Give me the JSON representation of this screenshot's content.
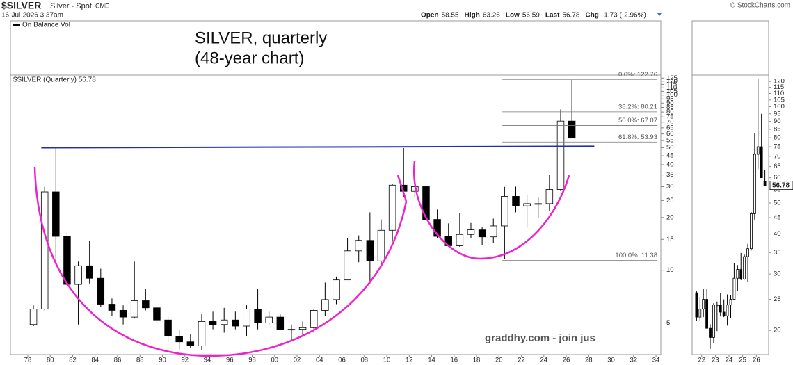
{
  "header": {
    "symbol": "$SILVER",
    "name": "Silver - Spot",
    "exchange": "CME",
    "date": "16-Jul-2026 3:37am",
    "source": "© StockCharts.com",
    "quote": [
      {
        "label": "Open",
        "value": 58.55
      },
      {
        "label": "High",
        "value": 63.26
      },
      {
        "label": "Low",
        "value": 56.59
      },
      {
        "label": "Last",
        "value": 56.78
      },
      {
        "label": "Chg",
        "value": "-1.73 (-2.96%)"
      }
    ]
  },
  "chart_data": [
    {
      "type": "candlestick",
      "title": "SILVER, quarterly",
      "subtitle": "(48-year chart)",
      "annotation": "graddhy.com - join jus",
      "indicator_label": "On Balance Vol",
      "series_label": "$SILVER (Quarterly) 56.78",
      "log_scale": true,
      "grid": false,
      "x": [
        1978,
        1979,
        1980,
        1981,
        1982,
        1983,
        1984,
        1985,
        1986,
        1987,
        1988,
        1989,
        1990,
        1991,
        1992,
        1993,
        1994,
        1995,
        1996,
        1997,
        1998,
        1999,
        2000,
        2001,
        2002,
        2003,
        2004,
        2005,
        2006,
        2007,
        2008,
        2009,
        2010,
        2011,
        2012,
        2013,
        2014,
        2015,
        2016,
        2017,
        2018,
        2019,
        2020,
        2021,
        2022,
        2023,
        2024,
        2025,
        2026
      ],
      "open": [
        4.9,
        6,
        28,
        15.6,
        8.3,
        10.6,
        9,
        6.4,
        5.9,
        5.4,
        6.7,
        6.1,
        5.2,
        4.2,
        3.9,
        3.7,
        5.1,
        4.9,
        5.2,
        4.8,
        6,
        5,
        5.4,
        4.6,
        4.6,
        4.7,
        5.9,
        6.8,
        8.8,
        12.9,
        14.8,
        11.3,
        16.9,
        30.6,
        28.2,
        30,
        19.5,
        15.6,
        13.8,
        16,
        17,
        15.5,
        17.9,
        26.4,
        23.3,
        24,
        24,
        28.9,
        71
      ],
      "high": [
        6.3,
        30,
        50,
        16.5,
        11.2,
        14.7,
        10.2,
        6.9,
        6.3,
        11.2,
        7.8,
        6.2,
        5.4,
        4.6,
        4.3,
        5.6,
        5.8,
        6.1,
        5.8,
        6.3,
        7.8,
        5.8,
        5.6,
        4.9,
        5.1,
        6,
        8.5,
        9.2,
        15.2,
        15.8,
        21.4,
        19.5,
        31,
        49.8,
        37.5,
        32.5,
        22.2,
        18.5,
        21.2,
        18.6,
        17.7,
        19.7,
        29.9,
        30,
        27,
        26.1,
        34.9,
        82.7,
        122
      ],
      "low": [
        4.8,
        5.9,
        10.8,
        7.9,
        4.9,
        8.4,
        6.2,
        5.5,
        4.9,
        5.3,
        5.9,
        5,
        3.9,
        3.5,
        3.6,
        3.5,
        4.6,
        4.4,
        4.6,
        4.2,
        4.6,
        4.9,
        4.6,
        4,
        4.2,
        4.4,
        5.5,
        6.4,
        8.8,
        11.1,
        8.4,
        10.4,
        14.6,
        26,
        26.1,
        18.2,
        15.3,
        13.6,
        13.6,
        15.2,
        13.9,
        14.3,
        11.6,
        21.4,
        17.5,
        19.9,
        21.9,
        28.3,
        56.59
      ],
      "close": [
        6,
        28,
        15.6,
        8.3,
        10.6,
        9,
        6.4,
        5.9,
        5.4,
        6.7,
        6.1,
        5.2,
        4.2,
        3.9,
        3.7,
        5.1,
        4.9,
        5.2,
        4.8,
        6,
        5,
        5.4,
        4.6,
        4.6,
        4.7,
        5.9,
        6.8,
        8.8,
        12.9,
        14.8,
        11.3,
        16.9,
        30.6,
        28.2,
        30,
        19.5,
        15.6,
        13.8,
        16,
        17,
        15.5,
        17.9,
        26.4,
        23.3,
        24,
        24,
        28.9,
        71,
        56.78
      ],
      "xlim": [
        1976.45,
        2034.43
      ],
      "ylim": [
        3.3,
        130
      ],
      "xticks": [
        {
          "value": 1978,
          "label": "78"
        },
        {
          "value": 1980,
          "label": "80"
        },
        {
          "value": 1982,
          "label": "82"
        },
        {
          "value": 1984,
          "label": "84"
        },
        {
          "value": 1986,
          "label": "86"
        },
        {
          "value": 1988,
          "label": "88"
        },
        {
          "value": 1990,
          "label": "90"
        },
        {
          "value": 1992,
          "label": "92"
        },
        {
          "value": 1994,
          "label": "94"
        },
        {
          "value": 1996,
          "label": "96"
        },
        {
          "value": 1998,
          "label": "98"
        },
        {
          "value": 2000,
          "label": "00"
        },
        {
          "value": 2002,
          "label": "02"
        },
        {
          "value": 2004,
          "label": "04"
        },
        {
          "value": 2006,
          "label": "06"
        },
        {
          "value": 2008,
          "label": "08"
        },
        {
          "value": 2010,
          "label": "10"
        },
        {
          "value": 2012,
          "label": "12"
        },
        {
          "value": 2014,
          "label": "14"
        },
        {
          "value": 2016,
          "label": "16"
        },
        {
          "value": 2018,
          "label": "18"
        },
        {
          "value": 2020,
          "label": "20"
        },
        {
          "value": 2022,
          "label": "22"
        },
        {
          "value": 2024,
          "label": "24"
        },
        {
          "value": 2026,
          "label": "26"
        },
        {
          "value": 2028,
          "label": "28"
        },
        {
          "value": 2030,
          "label": "30"
        },
        {
          "value": 2032,
          "label": "32"
        },
        {
          "value": 2034,
          "label": "34"
        }
      ],
      "yticks": [
        5,
        10,
        15,
        20,
        25,
        30,
        35,
        40,
        45,
        50,
        55,
        60,
        65,
        70,
        75,
        80,
        85,
        90,
        95,
        100,
        105,
        110,
        115,
        120,
        125
      ],
      "fib": {
        "x": 2020.3,
        "values": [
          122.76,
          80.21,
          67.07,
          53.93,
          11.38
        ],
        "value_labels": [
          "0.0%: 122.76",
          "38.2%: 80.21",
          "50.0%: 67.07",
          "61.8%: 53.93",
          "100.0%: 11.38"
        ]
      },
      "resistance": {
        "x": [
          1979.2,
          2028.5
        ],
        "values": [
          50,
          51
        ],
        "color": "#1f2fb0"
      },
      "up_color": "#ffffff",
      "down_color": "#000000"
    },
    {
      "type": "candlestick",
      "log_scale": true,
      "x": [
        2021.625,
        2021.875,
        2022.125,
        2022.375,
        2022.625,
        2022.875,
        2023.125,
        2023.375,
        2023.625,
        2023.875,
        2024.125,
        2024.375,
        2024.625,
        2024.875,
        2025.125,
        2025.375,
        2025.625,
        2025.875,
        2026.125,
        2026.375,
        2026.625
      ],
      "open": [
        26.2,
        22,
        23.3,
        25,
        20.3,
        19,
        24,
        24,
        22.8,
        22.2,
        24,
        25,
        29.1,
        31,
        28.9,
        34,
        36,
        46.3,
        71,
        75,
        58.55
      ],
      "high": [
        26.5,
        25.4,
        27,
        26.9,
        20.9,
        24.3,
        24.6,
        26.1,
        25,
        25.9,
        25.8,
        32.5,
        32,
        34.9,
        34.5,
        37.3,
        46.9,
        82.7,
        122,
        95,
        63.26
      ],
      "low": [
        21.4,
        21.4,
        22,
        20.5,
        17.5,
        18.2,
        19.9,
        22.1,
        22,
        20.7,
        21.9,
        24.9,
        26.5,
        28.7,
        28.8,
        28.3,
        35.5,
        44.4,
        64,
        61,
        56.59
      ],
      "close": [
        22,
        23.3,
        25,
        20.3,
        19,
        24,
        24,
        22.8,
        22.2,
        24,
        25,
        29.1,
        31,
        28.9,
        34,
        36,
        46.3,
        71,
        75,
        60,
        56.78
      ],
      "xlim": [
        2021.3,
        2026.9
      ],
      "ylim": [
        16.8,
        125.6
      ],
      "xticks": [
        {
          "value": 2022,
          "label": "22"
        },
        {
          "value": 2023,
          "label": "23"
        },
        {
          "value": 2024,
          "label": "24"
        },
        {
          "value": 2025,
          "label": "25"
        },
        {
          "value": 2026,
          "label": "26"
        }
      ],
      "yticks": [
        20,
        25,
        30,
        35,
        40,
        45,
        50,
        55,
        60,
        65,
        70,
        75,
        80,
        85,
        90,
        95,
        100,
        105,
        110,
        115,
        120
      ],
      "last": 56.78,
      "up_color": "#ffffff",
      "down_color": "#000000"
    }
  ]
}
